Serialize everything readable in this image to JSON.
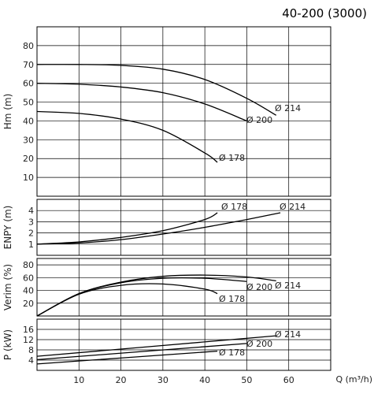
{
  "title": "40-200 (3000)",
  "chart_data": [
    {
      "id": "head",
      "type": "line",
      "ylabel": "Hm (m)",
      "xlim": [
        0,
        70
      ],
      "ylim": [
        0,
        90
      ],
      "yticks": [
        10,
        20,
        30,
        40,
        50,
        60,
        70,
        80
      ],
      "series": [
        {
          "name": "Ø 214",
          "x": [
            0,
            10,
            20,
            30,
            40,
            50,
            57
          ],
          "y": [
            70,
            70,
            69.5,
            67.5,
            62,
            52,
            43
          ]
        },
        {
          "name": "Ø 200",
          "x": [
            0,
            10,
            20,
            30,
            40,
            50
          ],
          "y": [
            60,
            59.5,
            58,
            55,
            49,
            40
          ]
        },
        {
          "name": "Ø 178",
          "x": [
            0,
            10,
            20,
            30,
            40,
            43
          ],
          "y": [
            45,
            44,
            41,
            35,
            23,
            18
          ]
        }
      ]
    },
    {
      "id": "npsh",
      "type": "line",
      "ylabel": "ENPY (m)",
      "xlim": [
        0,
        70
      ],
      "ylim": [
        0,
        5
      ],
      "yticks": [
        1,
        2,
        3,
        4
      ],
      "series": [
        {
          "name": "Ø 178",
          "x": [
            0,
            10,
            20,
            30,
            40,
            43
          ],
          "y": [
            1,
            1.2,
            1.6,
            2.2,
            3.2,
            3.8
          ]
        },
        {
          "name": "Ø 214",
          "x": [
            0,
            10,
            20,
            30,
            40,
            50,
            58
          ],
          "y": [
            1,
            1.1,
            1.4,
            1.9,
            2.5,
            3.2,
            3.8
          ]
        }
      ]
    },
    {
      "id": "efficiency",
      "type": "line",
      "ylabel": "Verim (%)",
      "xlim": [
        0,
        70
      ],
      "ylim": [
        0,
        90
      ],
      "yticks": [
        20,
        40,
        60,
        80
      ],
      "series": [
        {
          "name": "Ø 214",
          "x": [
            0,
            10,
            20,
            30,
            40,
            50,
            57
          ],
          "y": [
            0,
            35,
            53,
            62,
            64,
            61,
            55
          ]
        },
        {
          "name": "Ø 200",
          "x": [
            0,
            10,
            20,
            30,
            40,
            50
          ],
          "y": [
            0,
            35,
            52,
            59,
            59,
            54
          ]
        },
        {
          "name": "Ø 178",
          "x": [
            0,
            10,
            20,
            30,
            40,
            43
          ],
          "y": [
            0,
            34,
            48,
            50,
            42,
            35
          ]
        }
      ]
    },
    {
      "id": "power",
      "type": "line",
      "ylabel": "P (kW)",
      "xlabel": "Q (m³/h)",
      "xlim": [
        0,
        70
      ],
      "ylim": [
        0,
        20
      ],
      "yticks": [
        4,
        8,
        12,
        16
      ],
      "xticks": [
        10,
        20,
        30,
        40,
        50,
        60
      ],
      "series": [
        {
          "name": "Ø 214",
          "x": [
            0,
            57
          ],
          "y": [
            5.5,
            13.5
          ]
        },
        {
          "name": "Ø 200",
          "x": [
            0,
            50
          ],
          "y": [
            4.2,
            10.5
          ]
        },
        {
          "name": "Ø 178",
          "x": [
            0,
            43
          ],
          "y": [
            2.5,
            7.5
          ]
        }
      ]
    }
  ]
}
